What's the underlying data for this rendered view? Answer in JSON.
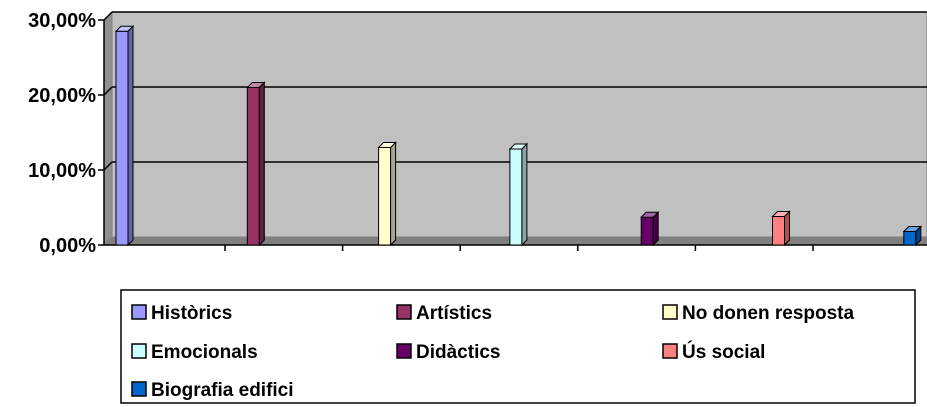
{
  "chart_data": {
    "type": "bar",
    "title": "",
    "xlabel": "",
    "ylabel": "",
    "ylim": [
      0,
      30
    ],
    "yticks": [
      0,
      10,
      20,
      30
    ],
    "ytick_labels": [
      "0,00%",
      "10,00%",
      "20,00%",
      "30,00%"
    ],
    "grid": true,
    "legend_position": "bottom",
    "plot_background": "#c0c0c0",
    "series": [
      {
        "name": "Històrics",
        "value": 28.5,
        "color": "#9999ff"
      },
      {
        "name": "Artístics",
        "value": 21.0,
        "color": "#993366"
      },
      {
        "name": "No donen resposta",
        "value": 13.0,
        "color": "#ffffcc"
      },
      {
        "name": "Emocionals",
        "value": 12.8,
        "color": "#ccffff"
      },
      {
        "name": "Didàctics",
        "value": 3.7,
        "color": "#660066"
      },
      {
        "name": "Ús social",
        "value": 3.8,
        "color": "#ff8080"
      },
      {
        "name": "Biografia edifici",
        "value": 1.8,
        "color": "#0066cc"
      }
    ]
  }
}
